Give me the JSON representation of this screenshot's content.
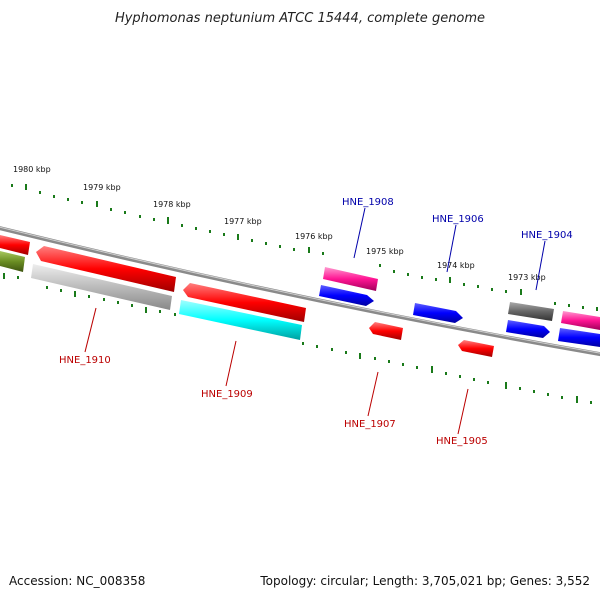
{
  "title": "Hyphomonas neptunium ATCC 15444, complete genome",
  "footer": {
    "accession": "Accession: NC_008358",
    "summary": "Topology: circular; Length: 3,705,021 bp; Genes: 3,552"
  },
  "scale_labels": [
    "1980 kbp",
    "1979 kbp",
    "1978 kbp",
    "1977 kbp",
    "1976 kbp",
    "1975 kbp",
    "1974 kbp",
    "1973 kbp"
  ],
  "genes": [
    {
      "id": "HNE_1910",
      "color": "#ff0000",
      "strand": "forward",
      "labeled": true
    },
    {
      "id": "HNE_1909",
      "color": "#00ffff",
      "strand": "forward",
      "labeled": true
    },
    {
      "id": "HNE_1908",
      "color": "#ff1493",
      "strand": "reverse",
      "labeled": true
    },
    {
      "id": "HNE_1907",
      "color": "#ff0000",
      "strand": "forward",
      "labeled": true
    },
    {
      "id": "HNE_1906",
      "color": "#0000ff",
      "strand": "reverse",
      "labeled": true
    },
    {
      "id": "HNE_1905",
      "color": "#ff0000",
      "strand": "forward",
      "labeled": true
    },
    {
      "id": "HNE_1904",
      "color": "#666666",
      "strand": "reverse",
      "labeled": true
    }
  ],
  "colors": {
    "backbone": "#8a8a8a",
    "scale_ticks": "#1a7a1a",
    "label_blue": "#0000aa",
    "label_red": "#bb0000",
    "olive": "#6b8e23",
    "grey": "#bbbbbb",
    "pink": "#ff1493",
    "blue": "#0000ff",
    "dark_grey": "#666666"
  }
}
